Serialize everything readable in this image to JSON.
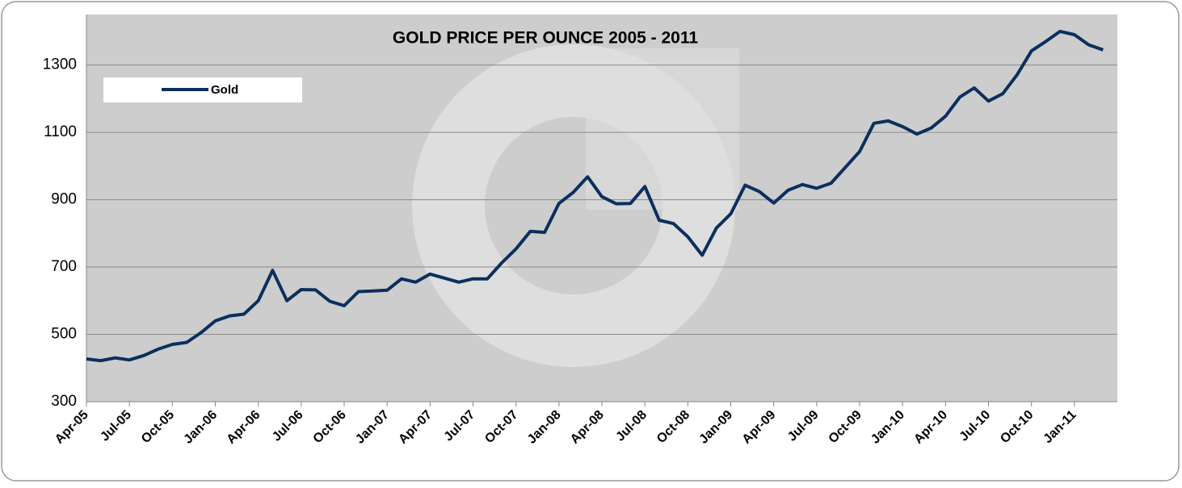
{
  "chart_data": {
    "type": "line",
    "title": "GOLD PRICE PER OUNCE 2005 - 2011",
    "categories": [
      "Apr-05",
      null,
      null,
      "Jul-05",
      null,
      null,
      "Oct-05",
      null,
      null,
      "Jan-06",
      null,
      null,
      "Apr-06",
      null,
      null,
      "Jul-06",
      null,
      null,
      "Oct-06",
      null,
      null,
      "Jan-07",
      null,
      null,
      "Apr-07",
      null,
      null,
      "Jul-07",
      null,
      null,
      "Oct-07",
      null,
      null,
      "Jan-08",
      null,
      null,
      "Apr-08",
      null,
      null,
      "Jul-08",
      null,
      null,
      "Oct-08",
      null,
      null,
      "Jan-09",
      null,
      null,
      "Apr-09",
      null,
      null,
      "Jul-09",
      null,
      null,
      "Oct-09",
      null,
      null,
      "Jan-10",
      null,
      null,
      "Apr-10",
      null,
      null,
      "Jul-10",
      null,
      null,
      "Oct-10",
      null,
      null,
      "Jan-11",
      null,
      null
    ],
    "series": [
      {
        "name": "Gold",
        "color": "#0b2f5e",
        "values": [
          427,
          422,
          430,
          424,
          437,
          456,
          470,
          476,
          505,
          540,
          555,
          560,
          600,
          690,
          600,
          633,
          632,
          598,
          585,
          627,
          629,
          631,
          665,
          655,
          679,
          667,
          655,
          665,
          665,
          712,
          754,
          806,
          803,
          889,
          922,
          968,
          909,
          888,
          889,
          939,
          839,
          829,
          790,
          735,
          816,
          858,
          943,
          924,
          890,
          928,
          945,
          934,
          949,
          996,
          1043,
          1127,
          1134,
          1117,
          1095,
          1113,
          1148,
          1205,
          1232,
          1193,
          1215,
          1271,
          1342,
          1370,
          1400,
          1390,
          1360,
          1345
        ]
      }
    ],
    "ylim": [
      300,
      1450
    ],
    "yticks": [
      300,
      500,
      700,
      900,
      1100,
      1300
    ],
    "grid": true,
    "legend": "top-left"
  }
}
